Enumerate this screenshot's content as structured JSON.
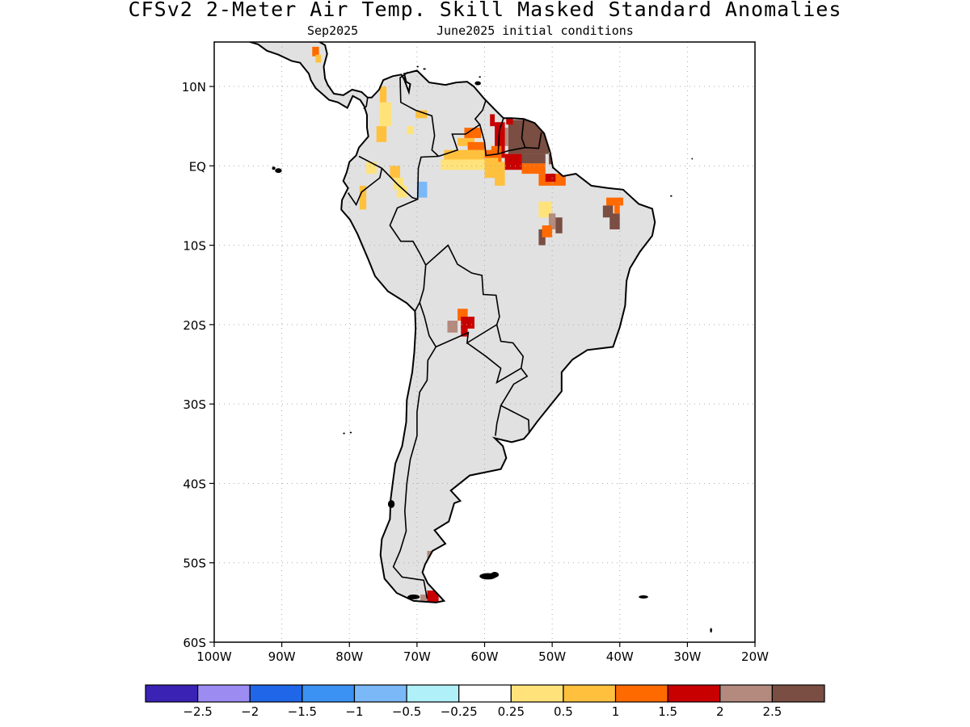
{
  "title": "CFSv2 2-Meter Air Temp. Skill Masked Standard Anomalies",
  "subtitle": {
    "valid_month": "Sep2025",
    "initial_conditions": "June2025 initial conditions"
  },
  "map": {
    "region": "South America",
    "projection": "lat-lon",
    "lon_range": [
      -100,
      -20
    ],
    "lat_range": [
      -60,
      15
    ],
    "grid": "dotted",
    "x_ticks": [
      "100W",
      "90W",
      "80W",
      "70W",
      "60W",
      "50W",
      "40W",
      "30W",
      "20W"
    ],
    "y_ticks": [
      "10N",
      "EQ",
      "10S",
      "20S",
      "30S",
      "40S",
      "50S",
      "60S"
    ],
    "masked_land_color": "#e1e1e1",
    "ocean_color": "#ffffff"
  },
  "colorbar": {
    "colors": [
      "#3a22b5",
      "#9c8cf2",
      "#2066e8",
      "#3b92f3",
      "#7bb8f7",
      "#b0f0f8",
      "#ffffff",
      "#ffe37a",
      "#ffc13d",
      "#ff6a00",
      "#c80000",
      "#b48a7e",
      "#7a4e42"
    ],
    "labels": [
      "-2.5",
      "-2",
      "-1.5",
      "-1",
      "-0.5",
      "-0.25",
      "0.25",
      "0.5",
      "1",
      "1.5",
      "2",
      "2.5"
    ]
  },
  "anomaly_patches": [
    {
      "region": "Guianas / Amapa",
      "level": "2.5"
    },
    {
      "region": "Guiana Shield / northern Amazon",
      "level": "1 to 2"
    },
    {
      "region": "Northern Colombia",
      "level": "0.5"
    },
    {
      "region": "Northeast Brazil",
      "level": "1.5 to 2.5"
    },
    {
      "region": "Lower Amazon",
      "level": "0.5 to 2.5"
    },
    {
      "region": "Eastern Bolivia",
      "level": "1.5 to 2.5"
    },
    {
      "region": "Southern Patagonia",
      "level": "2 to 2.5"
    },
    {
      "region": "Western Amazon",
      "level": "-0.5"
    }
  ]
}
